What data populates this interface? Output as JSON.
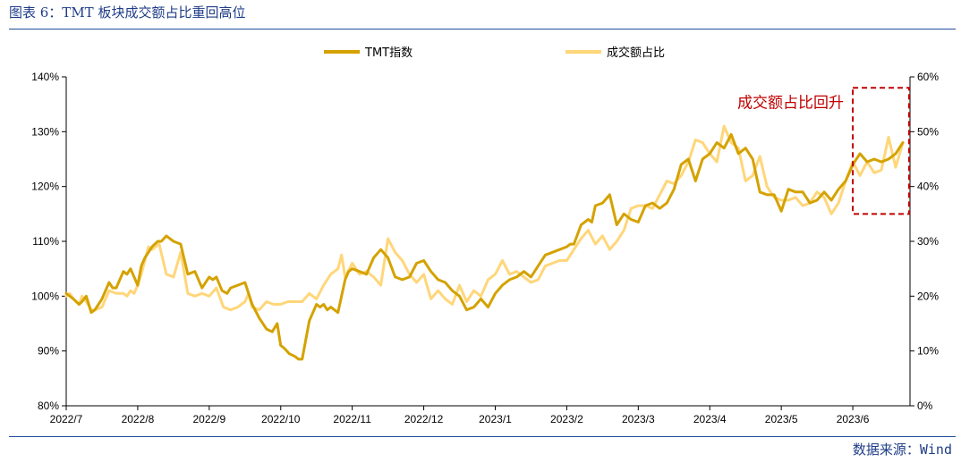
{
  "figure": {
    "title": "图表 6：TMT 板块成交额占比重回高位",
    "source": "数据来源：Wind"
  },
  "chart_data": {
    "type": "line",
    "xlabel": "",
    "ylabel": "",
    "x_ticks": [
      "2022/7",
      "2022/8",
      "2022/9",
      "2022/10",
      "2022/11",
      "2022/12",
      "2023/1",
      "2023/2",
      "2023/3",
      "2023/4",
      "2023/5",
      "2023/6"
    ],
    "y_left": {
      "ticks": [
        "80%",
        "90%",
        "100%",
        "110%",
        "120%",
        "130%",
        "140%"
      ],
      "ylim": [
        80,
        140
      ]
    },
    "y_right": {
      "ticks": [
        "0%",
        "10%",
        "20%",
        "30%",
        "40%",
        "50%",
        "60%"
      ],
      "ylim": [
        0,
        60
      ]
    },
    "grid": false,
    "legend_position": "top-center",
    "annotation": {
      "text": "成交额占比回升",
      "box_x_range": [
        "2023/6",
        "end"
      ],
      "box_y_range_right": [
        35,
        58
      ]
    },
    "colors": {
      "tmt_index": "#D4A200",
      "turnover_share": "#FFD67A",
      "annotation": "#C00000"
    },
    "series": [
      {
        "name": "TMT指数",
        "axis": "left",
        "x": [
          0.0,
          0.05,
          0.1,
          0.18,
          0.22,
          0.28,
          0.35,
          0.4,
          0.5,
          0.6,
          0.65,
          0.7,
          0.8,
          0.85,
          0.9,
          1.0,
          1.05,
          1.1,
          1.15,
          1.2,
          1.28,
          1.33,
          1.4,
          1.5,
          1.6,
          1.7,
          1.8,
          1.9,
          2.0,
          2.05,
          2.1,
          2.18,
          2.25,
          2.3,
          2.4,
          2.5,
          2.6,
          2.7,
          2.8,
          2.88,
          2.95,
          3.0,
          3.05,
          3.12,
          3.2,
          3.25,
          3.3,
          3.35,
          3.4,
          3.45,
          3.5,
          3.55,
          3.6,
          3.65,
          3.7,
          3.8,
          3.9,
          3.95,
          4.0,
          4.1,
          4.2,
          4.3,
          4.4,
          4.5,
          4.6,
          4.7,
          4.8,
          4.9,
          5.0,
          5.1,
          5.2,
          5.3,
          5.4,
          5.5,
          5.6,
          5.7,
          5.8,
          5.9,
          6.0,
          6.1,
          6.2,
          6.3,
          6.4,
          6.5,
          6.6,
          6.7,
          6.8,
          6.9,
          7.0,
          7.05,
          7.1,
          7.2,
          7.3,
          7.35,
          7.4,
          7.5,
          7.6,
          7.7,
          7.8,
          7.9,
          8.0,
          8.1,
          8.2,
          8.3,
          8.4,
          8.5,
          8.6,
          8.7,
          8.8,
          8.9,
          9.0,
          9.1,
          9.2,
          9.3,
          9.4,
          9.5,
          9.6,
          9.7,
          9.8,
          9.9,
          10.0,
          10.1,
          10.2,
          10.3,
          10.4,
          10.5,
          10.6,
          10.7,
          10.8,
          10.9,
          11.0,
          11.1,
          11.2,
          11.3,
          11.4,
          11.5,
          11.6,
          11.7
        ],
        "y": [
          100.5,
          100.0,
          99.5,
          98.5,
          99.0,
          100.0,
          97.0,
          97.5,
          99.5,
          102.5,
          101.5,
          101.5,
          104.5,
          104.0,
          105.0,
          102.0,
          105.5,
          107.0,
          108.0,
          109.0,
          110.0,
          110.0,
          111.0,
          110.0,
          109.5,
          104.0,
          104.5,
          101.5,
          103.5,
          103.0,
          103.5,
          101.0,
          100.5,
          101.5,
          102.0,
          102.5,
          98.5,
          96.0,
          94.0,
          93.5,
          95.0,
          91.0,
          90.5,
          89.5,
          89.0,
          88.5,
          88.5,
          92.0,
          95.5,
          97.0,
          98.5,
          98.0,
          98.5,
          97.5,
          98.0,
          97.0,
          103.0,
          104.5,
          105.0,
          104.5,
          104.0,
          107.0,
          108.5,
          107.0,
          103.5,
          103.0,
          103.5,
          106.0,
          106.5,
          104.5,
          103.0,
          102.5,
          101.0,
          100.0,
          97.5,
          98.0,
          99.5,
          98.0,
          100.5,
          102.0,
          103.0,
          103.5,
          104.5,
          103.5,
          105.5,
          107.5,
          108.0,
          108.5,
          109.0,
          109.5,
          109.5,
          113.0,
          114.0,
          113.5,
          116.5,
          117.0,
          118.5,
          113.0,
          115.0,
          114.0,
          113.5,
          116.5,
          117.0,
          116.0,
          117.0,
          119.5,
          124.0,
          125.0,
          121.0,
          125.0,
          126.0,
          128.0,
          127.0,
          129.5,
          126.0,
          127.0,
          125.0,
          119.0,
          118.5,
          118.5,
          115.5,
          119.5,
          119.0,
          119.0,
          117.0,
          117.5,
          119.0,
          117.5,
          119.5,
          121.0,
          124.0,
          126.0,
          124.5,
          125.0,
          124.5,
          125.0,
          126.0,
          128.0
        ]
      },
      {
        "name": "成交额占比",
        "axis": "right",
        "x": [
          0.0,
          0.05,
          0.1,
          0.18,
          0.22,
          0.28,
          0.35,
          0.4,
          0.5,
          0.6,
          0.7,
          0.8,
          0.85,
          0.9,
          0.95,
          1.0,
          1.05,
          1.1,
          1.15,
          1.2,
          1.3,
          1.4,
          1.5,
          1.6,
          1.7,
          1.8,
          1.9,
          2.0,
          2.1,
          2.2,
          2.3,
          2.4,
          2.5,
          2.55,
          2.6,
          2.7,
          2.8,
          2.9,
          3.0,
          3.1,
          3.2,
          3.3,
          3.4,
          3.5,
          3.6,
          3.7,
          3.8,
          3.85,
          3.9,
          4.0,
          4.1,
          4.2,
          4.3,
          4.4,
          4.5,
          4.6,
          4.7,
          4.8,
          4.9,
          5.0,
          5.1,
          5.2,
          5.3,
          5.4,
          5.5,
          5.6,
          5.7,
          5.8,
          5.9,
          6.0,
          6.1,
          6.2,
          6.3,
          6.4,
          6.5,
          6.6,
          6.7,
          6.8,
          6.9,
          7.0,
          7.1,
          7.2,
          7.3,
          7.4,
          7.5,
          7.6,
          7.7,
          7.8,
          7.9,
          8.0,
          8.1,
          8.2,
          8.3,
          8.4,
          8.5,
          8.6,
          8.7,
          8.8,
          8.9,
          9.0,
          9.1,
          9.2,
          9.3,
          9.4,
          9.5,
          9.6,
          9.7,
          9.8,
          9.9,
          10.0,
          10.1,
          10.2,
          10.3,
          10.4,
          10.5,
          10.6,
          10.7,
          10.8,
          10.9,
          11.0,
          11.1,
          11.2,
          11.3,
          11.4,
          11.5,
          11.6,
          11.7
        ],
        "y": [
          20.0,
          20.5,
          19.5,
          18.5,
          20.0,
          19.0,
          17.5,
          17.5,
          18.0,
          21.0,
          20.5,
          20.5,
          20.0,
          21.0,
          20.5,
          22.0,
          24.0,
          26.5,
          29.0,
          28.5,
          29.5,
          24.0,
          23.5,
          28.0,
          20.5,
          20.0,
          20.5,
          20.0,
          21.5,
          18.0,
          17.5,
          18.0,
          19.0,
          20.5,
          18.0,
          17.5,
          19.0,
          18.5,
          18.5,
          19.0,
          19.0,
          19.0,
          20.5,
          19.5,
          22.0,
          24.0,
          25.0,
          27.5,
          23.5,
          26.0,
          24.0,
          24.5,
          23.5,
          22.0,
          30.5,
          28.0,
          26.5,
          24.0,
          22.5,
          24.0,
          19.5,
          21.0,
          19.5,
          18.5,
          22.0,
          19.0,
          21.0,
          20.0,
          23.0,
          24.0,
          26.5,
          24.0,
          24.5,
          23.5,
          22.5,
          23.0,
          25.5,
          26.0,
          26.5,
          26.5,
          28.5,
          30.5,
          32.0,
          29.5,
          31.0,
          28.5,
          30.0,
          32.0,
          36.0,
          36.5,
          36.5,
          36.0,
          38.5,
          41.0,
          40.5,
          42.0,
          44.5,
          48.5,
          48.0,
          46.0,
          44.5,
          51.0,
          48.0,
          47.0,
          41.0,
          42.0,
          45.5,
          40.0,
          38.0,
          37.5,
          37.5,
          38.0,
          36.5,
          37.0,
          39.0,
          38.0,
          35.0,
          37.0,
          41.0,
          44.5,
          42.0,
          44.5,
          42.5,
          43.0,
          49.0,
          43.5,
          48.0
        ]
      }
    ]
  }
}
